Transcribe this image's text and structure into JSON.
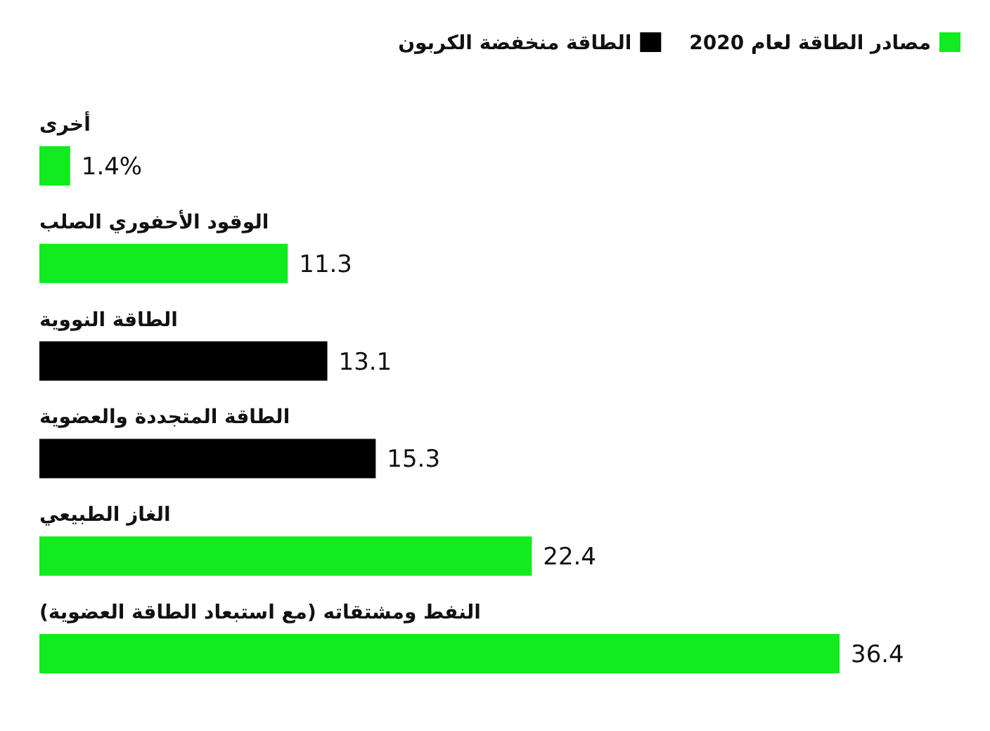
{
  "chart_data": {
    "type": "bar",
    "orientation": "horizontal",
    "stacked": true,
    "legend": "top right",
    "categories": [
      "أخرى",
      "الوقود الأحفوري الصلب",
      "الطاقة النووية",
      "الطاقة المتجددة والعضوية",
      "الغاز الطبيعي",
      "النفط ومشتقاته (مع استبعاد الطاقة العضوية)"
    ],
    "series": [
      {
        "name": "مصادر الطاقة لعام 2020",
        "color": "#12eb1f",
        "values": [
          1.4,
          11.3,
          null,
          null,
          22.4,
          36.4
        ],
        "value_labels": [
          "1.4%",
          "11.3",
          null,
          null,
          "22.4",
          "36.4"
        ]
      },
      {
        "name": "الطاقة منخفضة الكربون",
        "color": "#000000",
        "values": [
          null,
          null,
          13.1,
          15.3,
          null,
          null
        ],
        "value_labels": [
          null,
          null,
          "13.1",
          "15.3",
          null,
          null
        ]
      }
    ]
  }
}
